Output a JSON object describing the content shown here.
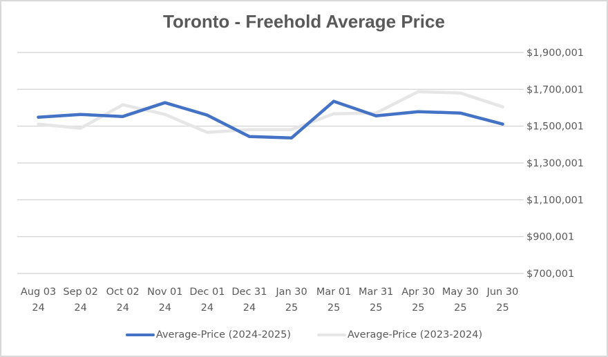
{
  "chart_data": {
    "type": "line",
    "title": "Toronto - Freehold Average Price",
    "xlabel": "",
    "ylabel": "",
    "categories": [
      [
        "Aug 03",
        "24"
      ],
      [
        "Sep 02",
        "24"
      ],
      [
        "Oct 02",
        "24"
      ],
      [
        "Nov 01",
        "24"
      ],
      [
        "Dec 01",
        "24"
      ],
      [
        "Dec 31",
        "24"
      ],
      [
        "Jan 30",
        "25"
      ],
      [
        "Mar 01",
        "25"
      ],
      [
        "Mar 31",
        "25"
      ],
      [
        "Apr 30",
        "25"
      ],
      [
        "May 30",
        "25"
      ],
      [
        "Jun 30",
        "25"
      ]
    ],
    "y_ticks": [
      {
        "value": 1900001,
        "label": "$1,900,001"
      },
      {
        "value": 1700001,
        "label": "$1,700,001"
      },
      {
        "value": 1500001,
        "label": "$1,500,001"
      },
      {
        "value": 1300001,
        "label": "$1,300,001"
      },
      {
        "value": 1100001,
        "label": "$1,100,001"
      },
      {
        "value": 900001,
        "label": "$900,001"
      },
      {
        "value": 700001,
        "label": "$700,001"
      }
    ],
    "ylim": [
      700001,
      1900001
    ],
    "y_axis_side": "right",
    "grid": true,
    "legend_position": "bottom",
    "series": [
      {
        "name": "Average-Price (2024-2025)",
        "color": "#4472c4",
        "values": [
          1548750,
          1563750,
          1552500,
          1627500,
          1560000,
          1443750,
          1436250,
          1635000,
          1556250,
          1578750,
          1571250,
          1511250
        ]
      },
      {
        "name": "Average-Price (2023-2024)",
        "color": "#e7e6e6",
        "values": [
          1511250,
          1488750,
          1616250,
          1563750,
          1466250,
          1481250,
          1481250,
          1567500,
          1571250,
          1687500,
          1680000,
          1605000
        ]
      }
    ]
  }
}
